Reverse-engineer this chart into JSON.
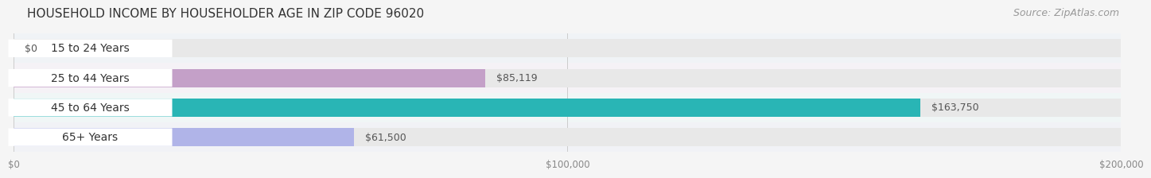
{
  "title": "HOUSEHOLD INCOME BY HOUSEHOLDER AGE IN ZIP CODE 96020",
  "source": "Source: ZipAtlas.com",
  "categories": [
    "15 to 24 Years",
    "25 to 44 Years",
    "45 to 64 Years",
    "65+ Years"
  ],
  "values": [
    0,
    85119,
    163750,
    61500
  ],
  "value_labels": [
    "$0",
    "$85,119",
    "$163,750",
    "$61,500"
  ],
  "bar_colors": [
    "#a8c4e0",
    "#c4a0c8",
    "#29b5b5",
    "#b0b4e8"
  ],
  "bar_bg_color": "#e8e8e8",
  "background_color": "#f5f5f5",
  "row_bg_colors": [
    "#f0f4f8",
    "#f5f0f8",
    "#eef8f8",
    "#f0f0f8"
  ],
  "xlim": [
    0,
    200000
  ],
  "xticks": [
    0,
    100000,
    200000
  ],
  "xtick_labels": [
    "$0",
    "$100,000",
    "$200,000"
  ],
  "title_fontsize": 11,
  "source_fontsize": 9,
  "label_fontsize": 10,
  "value_fontsize": 9,
  "bar_height": 0.62,
  "label_color": "#333333",
  "value_label_color_inside": "#ffffff",
  "value_label_color_outside": "#555555",
  "grid_color": "#cccccc",
  "tick_color": "#888888"
}
